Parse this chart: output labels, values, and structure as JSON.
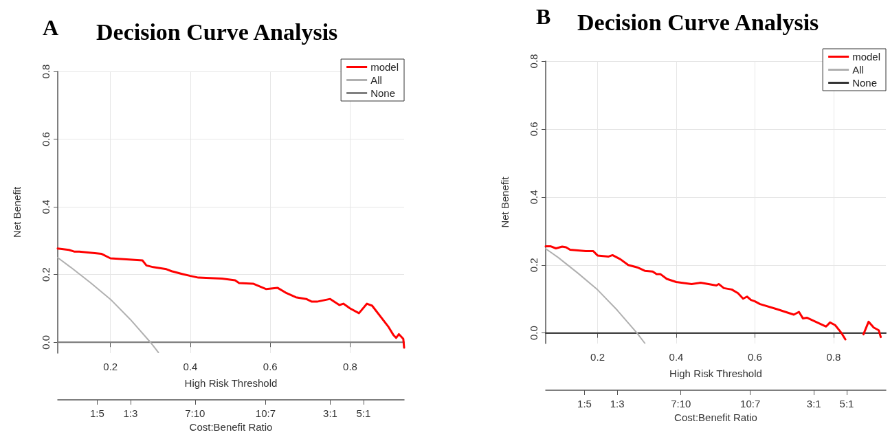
{
  "chart_data": [
    {
      "type": "line",
      "title": "Decision Curve Analysis",
      "annotations": [
        "A",
        "1:5",
        "1:3",
        "7:10",
        "10:7",
        "3:1",
        "5:1",
        "Cost:Benefit Ratio"
      ],
      "xlabel": "High Risk Threshold",
      "ylabel": "Net Benefit",
      "xlim": [
        0.068,
        0.935
      ],
      "ylim": [
        -0.032,
        0.8
      ],
      "xticks": [
        0.2,
        0.4,
        0.6,
        0.8
      ],
      "yticks": [
        {
          "value": 0,
          "label": "0.0"
        },
        0.2,
        0.4,
        0.6,
        0.8
      ],
      "grid": true,
      "legend": "top right",
      "marker": "none",
      "series": [
        {
          "name": "model",
          "color": "#ff0000",
          "x": [
            0.068,
            0.096,
            0.109,
            0.122,
            0.178,
            0.2,
            0.28,
            0.29,
            0.307,
            0.34,
            0.353,
            0.379,
            0.4,
            0.42,
            0.479,
            0.512,
            0.522,
            0.557,
            0.59,
            0.618,
            0.638,
            0.664,
            0.69,
            0.704,
            0.717,
            0.75,
            0.773,
            0.783,
            0.8,
            0.822,
            0.842,
            0.855,
            0.895,
            0.908,
            0.915,
            0.922,
            0.933,
            0.935
          ],
          "values": [
            0.277,
            0.273,
            0.268,
            0.268,
            0.261,
            0.248,
            0.242,
            0.227,
            0.222,
            0.216,
            0.21,
            0.202,
            0.196,
            0.191,
            0.188,
            0.183,
            0.175,
            0.173,
            0.157,
            0.161,
            0.147,
            0.133,
            0.128,
            0.12,
            0.12,
            0.128,
            0.11,
            0.114,
            0.1,
            0.086,
            0.114,
            0.108,
            0.047,
            0.022,
            0.013,
            0.024,
            0.01,
            -0.016
          ]
        },
        {
          "name": "All",
          "color": "#b0b0b0",
          "x": [
            0.068,
            0.1,
            0.15,
            0.2,
            0.25,
            0.3,
            0.32
          ],
          "values": [
            0.25,
            0.222,
            0.176,
            0.127,
            0.067,
            0.0,
            -0.03
          ]
        },
        {
          "name": "None",
          "color": "#808080",
          "x": [
            0.068,
            0.935
          ],
          "values": [
            0.0,
            0.0
          ]
        }
      ]
    },
    {
      "type": "line",
      "title": "Decision Curve Analysis",
      "annotations": [
        "B",
        "1:5",
        "1:3",
        "7:10",
        "10:7",
        "3:1",
        "5:1",
        "Cost:Benefit Ratio"
      ],
      "xlabel": "High Risk Threshold",
      "ylabel": "Net Benefit",
      "xlim": [
        0.068,
        0.933
      ],
      "ylim": [
        -0.031,
        0.8
      ],
      "xticks": [
        0.2,
        0.4,
        0.6,
        0.8
      ],
      "yticks": [
        {
          "value": 0,
          "label": "0.0"
        },
        0.2,
        0.4,
        0.6,
        0.8
      ],
      "grid": true,
      "legend": "top right",
      "marker": "none",
      "series": [
        {
          "name": "model",
          "color": "#ff0000",
          "x": [
            0.068,
            0.081,
            0.094,
            0.11,
            0.12,
            0.13,
            0.17,
            0.189,
            0.2,
            0.228,
            0.238,
            0.258,
            0.278,
            0.301,
            0.32,
            0.34,
            0.35,
            0.36,
            0.376,
            0.4,
            0.439,
            0.462,
            0.502,
            0.508,
            0.521,
            0.541,
            0.557,
            0.57,
            0.58,
            0.59,
            0.6,
            0.613,
            0.656,
            0.699,
            0.712,
            0.722,
            0.732,
            0.781,
            0.791,
            0.804,
            0.82,
            0.83,
            0.855,
            0.876,
            0.889,
            0.902,
            0.915,
            0.92
          ],
          "values": [
            0.255,
            0.255,
            0.249,
            0.254,
            0.252,
            0.245,
            0.241,
            0.241,
            0.228,
            0.225,
            0.229,
            0.217,
            0.2,
            0.193,
            0.183,
            0.181,
            0.173,
            0.173,
            0.159,
            0.15,
            0.144,
            0.148,
            0.14,
            0.144,
            0.132,
            0.128,
            0.117,
            0.101,
            0.107,
            0.097,
            0.093,
            0.085,
            0.07,
            0.054,
            0.062,
            0.043,
            0.045,
            0.019,
            0.031,
            0.023,
            0.0,
            -0.019,
            null,
            -0.004,
            0.033,
            0.016,
            0.008,
            -0.012
          ]
        },
        {
          "name": "All",
          "color": "#b0b0b0",
          "x": [
            0.068,
            0.1,
            0.15,
            0.2,
            0.25,
            0.3,
            0.32
          ],
          "values": [
            0.248,
            0.222,
            0.176,
            0.127,
            0.067,
            0.0,
            -0.03
          ]
        },
        {
          "name": "None",
          "color": "#333333",
          "x": [
            0.068,
            0.933
          ],
          "values": [
            0.0,
            0.0
          ]
        }
      ]
    }
  ]
}
